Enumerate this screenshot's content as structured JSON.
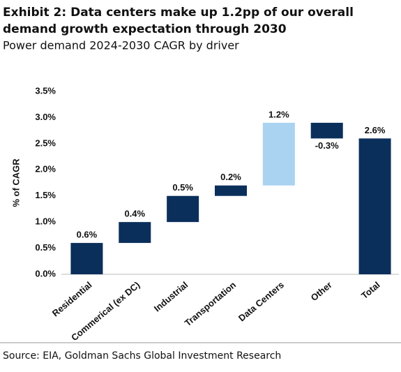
{
  "chart_data": {
    "type": "waterfall",
    "title": "Exhibit 2: Data centers make up 1.2pp of our overall demand growth expectation through 2030",
    "subtitle": "Power demand 2024-2030 CAGR by driver",
    "y_label": "% of CAGR",
    "source": "Source: EIA, Goldman Sachs Global Investment Research",
    "categories": [
      "Residential",
      "Commerical (ex DC)",
      "Industrial",
      "Transportation",
      "Data Centers",
      "Other",
      "Total"
    ],
    "values": [
      0.6,
      0.4,
      0.5,
      0.2,
      1.2,
      -0.3,
      2.6
    ],
    "value_labels": [
      "0.6%",
      "0.4%",
      "0.5%",
      "0.2%",
      "1.2%",
      "-0.3%",
      "2.6%"
    ],
    "is_total": [
      false,
      false,
      false,
      false,
      false,
      false,
      true
    ],
    "colors": [
      "#0b2f5b",
      "#0b2f5b",
      "#0b2f5b",
      "#0b2f5b",
      "#a9d3f0",
      "#0b2f5b",
      "#0b2f5b"
    ],
    "ylim": [
      0,
      3.5
    ],
    "yticks": [
      {
        "value": 0,
        "label": "0.0%"
      },
      {
        "value": 0.5,
        "label": "0.5%"
      },
      {
        "value": 1,
        "label": "1.0%"
      },
      {
        "value": 1.5,
        "label": "1.5%"
      },
      {
        "value": 2,
        "label": "2.0%"
      },
      {
        "value": 2.5,
        "label": "2.5%"
      },
      {
        "value": 3,
        "label": "3.0%"
      },
      {
        "value": 3.5,
        "label": "3.5%"
      }
    ],
    "grid": false
  }
}
